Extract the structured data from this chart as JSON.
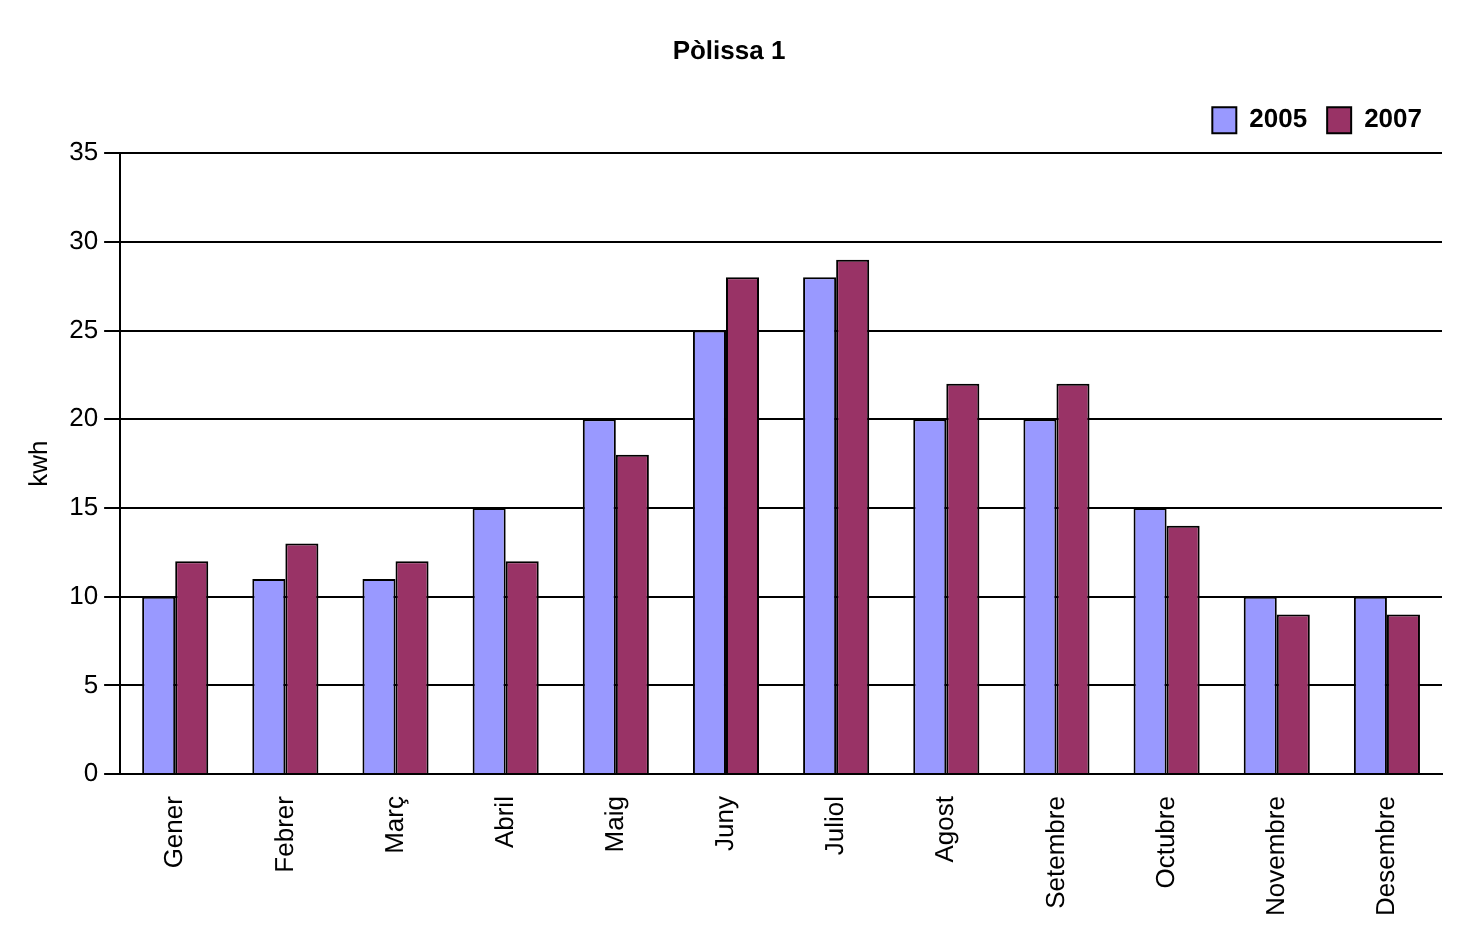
{
  "chart_data": {
    "type": "bar",
    "title": "Pòlissa 1",
    "ylabel": "kwh",
    "categories": [
      "Gener",
      "Febrer",
      "Març",
      "Abril",
      "Maig",
      "Juny",
      "Juliol",
      "Agost",
      "Setembre",
      "Octubre",
      "Novembre",
      "Desembre"
    ],
    "series": [
      {
        "name": "2005",
        "color": "#9999ff",
        "values": [
          10,
          11,
          11,
          15,
          20,
          25,
          28,
          20,
          20,
          15,
          10,
          10
        ]
      },
      {
        "name": "2007",
        "color": "#993366",
        "values": [
          12,
          13,
          12,
          12,
          18,
          28,
          29,
          22,
          22,
          14,
          9,
          9
        ]
      }
    ],
    "ylim": [
      0,
      35
    ],
    "yticks": [
      0,
      5,
      10,
      15,
      20,
      25,
      30,
      35
    ],
    "grid": "y",
    "legend": "top right"
  }
}
